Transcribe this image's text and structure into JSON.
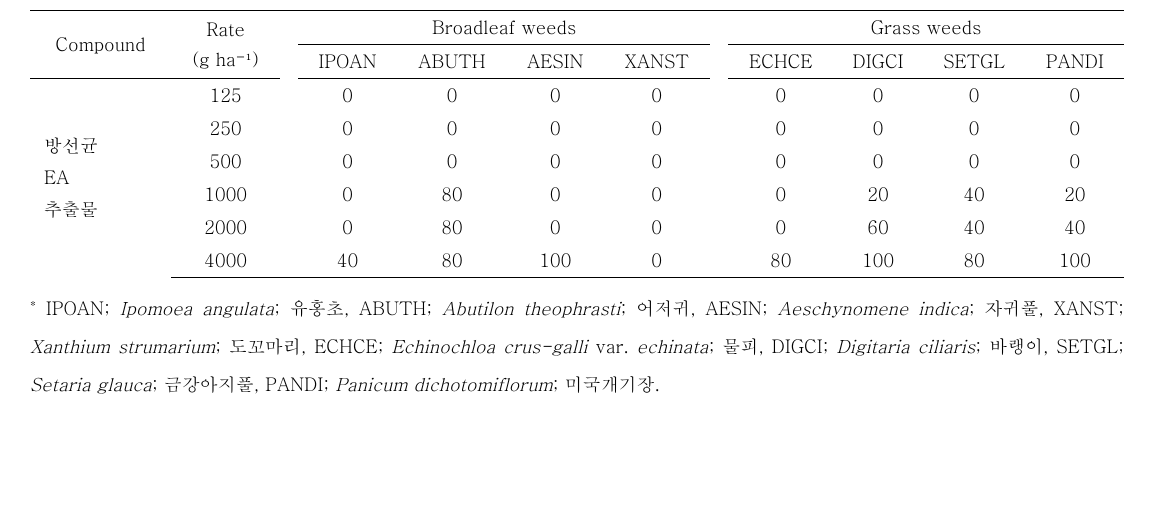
{
  "table": {
    "headers": {
      "compound": "Compound",
      "rate_top": "Rate",
      "rate_bottom": "(g ha⁻¹)",
      "broadleaf": "Broadleaf weeds",
      "grass": "Grass weeds",
      "broadleaf_cols": [
        "IPOAN",
        "ABUTH",
        "AESIN",
        "XANST"
      ],
      "grass_cols": [
        "ECHCE",
        "DIGCI",
        "SETGL",
        "PANDI"
      ]
    },
    "compound_label_lines": [
      "방선균",
      "EA",
      "추출물"
    ],
    "rows": [
      {
        "rate": "125",
        "b": [
          "0",
          "0",
          "0",
          "0"
        ],
        "g": [
          "0",
          "0",
          "0",
          "0"
        ]
      },
      {
        "rate": "250",
        "b": [
          "0",
          "0",
          "0",
          "0"
        ],
        "g": [
          "0",
          "0",
          "0",
          "0"
        ]
      },
      {
        "rate": "500",
        "b": [
          "0",
          "0",
          "0",
          "0"
        ],
        "g": [
          "0",
          "0",
          "0",
          "0"
        ]
      },
      {
        "rate": "1000",
        "b": [
          "0",
          "80",
          "0",
          "0"
        ],
        "g": [
          "0",
          "20",
          "40",
          "20"
        ]
      },
      {
        "rate": "2000",
        "b": [
          "0",
          "80",
          "0",
          "0"
        ],
        "g": [
          "0",
          "60",
          "40",
          "40"
        ]
      },
      {
        "rate": "4000",
        "b": [
          "40",
          "80",
          "100",
          "0"
        ],
        "g": [
          "80",
          "100",
          "80",
          "100"
        ]
      }
    ]
  },
  "footnote": {
    "marker": "*",
    "entries": [
      {
        "code": "IPOAN",
        "sci": "Ipomoea angulata",
        "kor": "유홍초"
      },
      {
        "code": "ABUTH",
        "sci": "Abutilon theophrasti",
        "kor": "어저귀"
      },
      {
        "code": "AESIN",
        "sci": "Aeschynomene indica",
        "kor": "자귀풀"
      },
      {
        "code": "XANST",
        "sci": "Xanthium strumarium",
        "kor": "도꼬마리"
      },
      {
        "code": "ECHCE",
        "sci": "Echinochloa crus-galli",
        "var": "echinata",
        "kor": "물피"
      },
      {
        "code": "DIGCI",
        "sci": "Digitaria ciliaris",
        "kor": "바랭이"
      },
      {
        "code": "SETGL",
        "sci": "Setaria glauca",
        "kor": "금강아지풀"
      },
      {
        "code": "PANDI",
        "sci": "Panicum dichotomiflorum",
        "kor": "미국개기장"
      }
    ]
  }
}
